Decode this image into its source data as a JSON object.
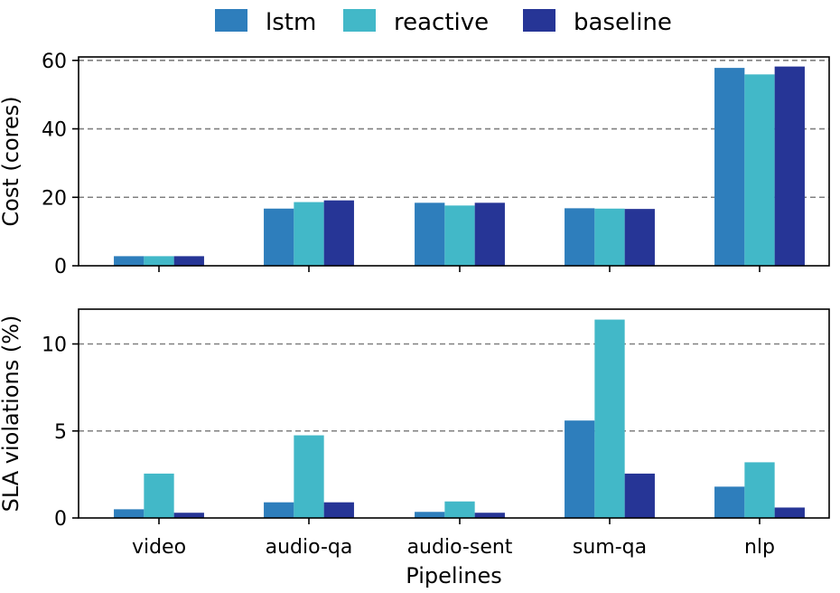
{
  "chart_data": [
    {
      "type": "bar",
      "categories": [
        "video",
        "audio-qa",
        "audio-sent",
        "sum-qa",
        "nlp"
      ],
      "series": [
        {
          "name": "lstm",
          "color": "#2e7ebc",
          "values": [
            2.8,
            16.7,
            18.4,
            16.8,
            57.8
          ]
        },
        {
          "name": "reactive",
          "color": "#42b8c8",
          "values": [
            2.8,
            18.6,
            17.6,
            16.7,
            55.9
          ]
        },
        {
          "name": "baseline",
          "color": "#263596",
          "values": [
            2.8,
            19.1,
            18.4,
            16.6,
            58.2
          ]
        }
      ],
      "ylabel": "Cost (cores)",
      "xlabel": "",
      "ylim": [
        0,
        61
      ],
      "yticks": [
        0,
        20,
        40,
        60
      ],
      "grid": "horizontal dashed",
      "show_xticklabels": false
    },
    {
      "type": "bar",
      "categories": [
        "video",
        "audio-qa",
        "audio-sent",
        "sum-qa",
        "nlp"
      ],
      "series": [
        {
          "name": "lstm",
          "color": "#2e7ebc",
          "values": [
            0.5,
            0.9,
            0.35,
            5.6,
            1.8
          ]
        },
        {
          "name": "reactive",
          "color": "#42b8c8",
          "values": [
            2.55,
            4.75,
            0.95,
            11.4,
            3.2
          ]
        },
        {
          "name": "baseline",
          "color": "#263596",
          "values": [
            0.3,
            0.9,
            0.3,
            2.55,
            0.6
          ]
        }
      ],
      "ylabel": "SLA violations (%)",
      "xlabel": "Pipelines",
      "ylim": [
        0,
        12
      ],
      "yticks": [
        0,
        5,
        10
      ],
      "grid": "horizontal dashed",
      "show_xticklabels": true
    }
  ],
  "legend": {
    "position": "top-center",
    "entries": [
      "lstm",
      "reactive",
      "baseline"
    ]
  }
}
